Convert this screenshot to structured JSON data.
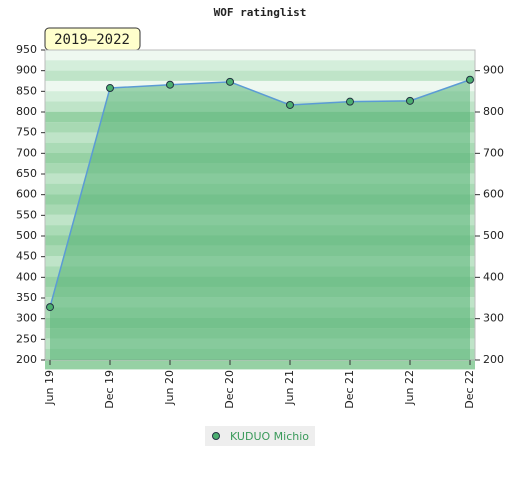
{
  "chart_data": {
    "type": "area",
    "title": "WOF ratinglist",
    "badge": "2019–2022",
    "categories": [
      "Jun 19",
      "Dec 19",
      "Jun 20",
      "Dec 20",
      "Jun 21",
      "Dec 21",
      "Jun 22",
      "Dec 22"
    ],
    "series": [
      {
        "name": "KUDUO Michio",
        "color": "#5b9bd5",
        "values": [
          328,
          858,
          866,
          873,
          817,
          825,
          827,
          878
        ]
      }
    ],
    "ylim": [
      200,
      950
    ],
    "yticks": [
      200,
      250,
      300,
      350,
      400,
      450,
      500,
      550,
      600,
      650,
      700,
      750,
      800,
      850,
      900,
      950
    ],
    "y2lim": [
      200,
      950
    ],
    "y2ticks": [
      200,
      300,
      400,
      500,
      600,
      700,
      800,
      900
    ]
  }
}
